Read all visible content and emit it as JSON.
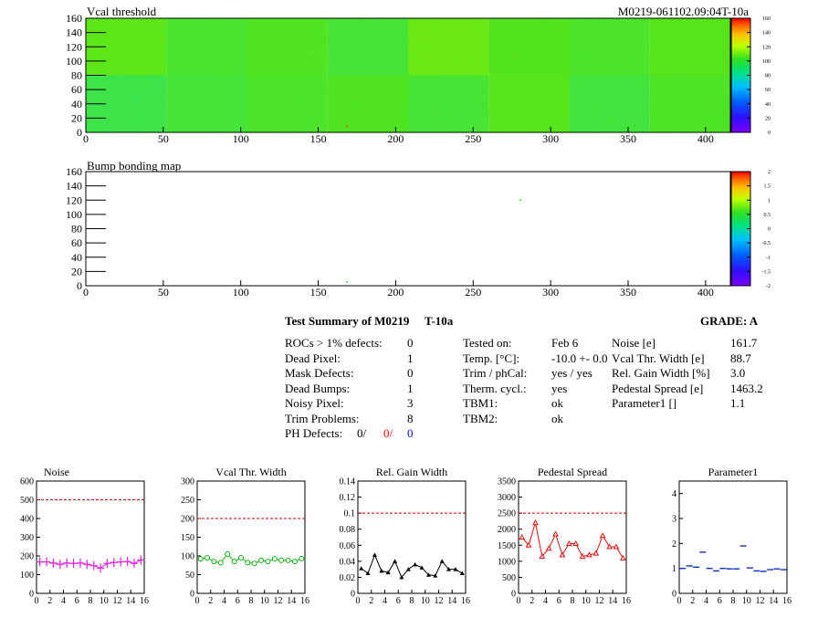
{
  "header": {
    "map1_title": "Vcal threshold",
    "module_id": "M0219-061102.09:04T-10a",
    "map2_title": "Bump bonding map"
  },
  "colors": {
    "map_green": "#2fe02a",
    "pink": "#e020e0",
    "green_series": "#10b010",
    "black_series": "#000000",
    "red_series": "#e01010",
    "blue_series": "#1030c0",
    "limit_line": "#c00000",
    "defects_red": "#ff0000",
    "defects_blue": "#0000ff"
  },
  "summary": {
    "title": "Test Summary of M0219",
    "test": "T-10a",
    "grade": "GRADE:  A",
    "defects": [
      {
        "label": "ROCs > 1% defects:",
        "value": "0"
      },
      {
        "label": "Dead Pixel:",
        "value": "1"
      },
      {
        "label": "Mask Defects:",
        "value": "0"
      },
      {
        "label": "Dead Bumps:",
        "value": "1"
      },
      {
        "label": "Noisy Pixel:",
        "value": "3"
      },
      {
        "label": "Trim Problems:",
        "value": "8"
      }
    ],
    "ph_label": "PH Defects:",
    "ph_values": [
      "0/",
      "0/",
      "0"
    ],
    "conditions": [
      {
        "label": "Tested on:",
        "value": "Feb 6"
      },
      {
        "label": "Temp. [°C]:",
        "value": "-10.0 +- 0.0"
      },
      {
        "label": "Trim / phCal:",
        "value": "yes / yes"
      },
      {
        "label": "Therm. cycl.:",
        "value": "yes"
      },
      {
        "label": "TBM1:",
        "value": "ok"
      },
      {
        "label": "TBM2:",
        "value": "ok"
      }
    ],
    "params": [
      {
        "label": "Noise [e]",
        "value": "161.7"
      },
      {
        "label": "Vcal Thr. Width [e]",
        "value": "88.7"
      },
      {
        "label": "Rel. Gain Width [%]",
        "value": "3.0"
      },
      {
        "label": "Pedestal Spread [e]",
        "value": "1463.2"
      },
      {
        "label": "Parameter1 []",
        "value": "1.1"
      }
    ]
  },
  "chart_data": [
    {
      "type": "heatmap",
      "title": "Vcal threshold",
      "x_ticks": [
        "0",
        "50",
        "100",
        "150",
        "200",
        "250",
        "300",
        "350",
        "400"
      ],
      "y_ticks": [
        "0",
        "20",
        "40",
        "60",
        "80",
        "100",
        "120",
        "140",
        "160"
      ],
      "xlim": [
        0,
        416
      ],
      "ylim": [
        0,
        160
      ],
      "z_ticks": [
        "0",
        "20",
        "40",
        "60",
        "80",
        "100",
        "120",
        "140",
        "160"
      ],
      "zlim": [
        0,
        160
      ],
      "roc_grid": {
        "cols": 8,
        "rows": 2,
        "roc_width": 52,
        "roc_height": 80
      },
      "roc_mean_values": {
        "top": [
          104,
          98,
          101,
          96,
          106,
          102,
          99,
          103
        ],
        "bottom": [
          92,
          96,
          99,
          101,
          97,
          103,
          95,
          100
        ]
      },
      "defect_pixels": [
        {
          "x": 168,
          "y": 9,
          "value": 150
        }
      ]
    },
    {
      "type": "heatmap",
      "title": "Bump bonding map",
      "x_ticks": [
        "0",
        "50",
        "100",
        "150",
        "200",
        "250",
        "300",
        "350",
        "400"
      ],
      "y_ticks": [
        "0",
        "20",
        "40",
        "60",
        "80",
        "100",
        "120",
        "140",
        "160"
      ],
      "xlim": [
        0,
        416
      ],
      "ylim": [
        0,
        160
      ],
      "z_ticks": [
        "-2",
        "-1.5",
        "-1",
        "-0.5",
        "0",
        "0.5",
        "1",
        "1.5",
        "2"
      ],
      "zlim": [
        -2,
        2
      ],
      "marked_pixels": [
        {
          "x": 168,
          "y": 5
        },
        {
          "x": 280,
          "y": 120
        }
      ]
    },
    {
      "type": "line",
      "title": "Noise",
      "style": "crosses",
      "x": [
        0,
        1,
        2,
        3,
        4,
        5,
        6,
        7,
        8,
        9,
        10,
        11,
        12,
        13,
        14,
        15
      ],
      "values": [
        168,
        168,
        162,
        155,
        162,
        160,
        162,
        155,
        148,
        135,
        160,
        165,
        168,
        170,
        160,
        178
      ],
      "xlim": [
        0,
        16
      ],
      "ylim": [
        0,
        600
      ],
      "y_ticks": [
        "0",
        "100",
        "200",
        "300",
        "400",
        "500",
        "600"
      ],
      "x_ticks": [
        "0",
        "2",
        "4",
        "6",
        "8",
        "10",
        "12",
        "14",
        "16"
      ],
      "limit": 500
    },
    {
      "type": "line",
      "title": "Vcal Thr. Width",
      "style": "circles",
      "x": [
        0,
        1,
        2,
        3,
        4,
        5,
        6,
        7,
        8,
        9,
        10,
        11,
        12,
        13,
        14,
        15
      ],
      "values": [
        92,
        95,
        85,
        82,
        105,
        85,
        95,
        82,
        80,
        88,
        85,
        92,
        88,
        88,
        85,
        93
      ],
      "xlim": [
        0,
        16
      ],
      "ylim": [
        0,
        300
      ],
      "y_ticks": [
        "0",
        "50",
        "100",
        "150",
        "200",
        "250",
        "300"
      ],
      "x_ticks": [
        "0",
        "2",
        "4",
        "6",
        "8",
        "10",
        "12",
        "14",
        "16"
      ],
      "limit": 200
    },
    {
      "type": "line",
      "title": "Rel. Gain Width",
      "style": "triangles",
      "x": [
        0,
        1,
        2,
        3,
        4,
        5,
        6,
        7,
        8,
        9,
        10,
        11,
        12,
        13,
        14,
        15
      ],
      "values": [
        0.031,
        0.025,
        0.048,
        0.028,
        0.026,
        0.04,
        0.02,
        0.03,
        0.036,
        0.032,
        0.023,
        0.022,
        0.04,
        0.03,
        0.03,
        0.025
      ],
      "xlim": [
        0,
        16
      ],
      "ylim": [
        0,
        0.14
      ],
      "y_ticks": [
        "0",
        "0.02",
        "0.04",
        "0.06",
        "0.08",
        "0.1",
        "0.12",
        "0.14"
      ],
      "x_ticks": [
        "0",
        "2",
        "4",
        "6",
        "8",
        "10",
        "12",
        "14",
        "16"
      ],
      "limit": 0.1
    },
    {
      "type": "line",
      "title": "Pedestal Spread",
      "style": "open-triangles",
      "x": [
        0,
        1,
        2,
        3,
        4,
        5,
        6,
        7,
        8,
        9,
        10,
        11,
        12,
        13,
        14,
        15
      ],
      "values": [
        1750,
        1500,
        2200,
        1150,
        1400,
        1850,
        1200,
        1550,
        1550,
        1150,
        1200,
        1250,
        1800,
        1450,
        1450,
        1100
      ],
      "xlim": [
        0,
        16
      ],
      "ylim": [
        0,
        3500
      ],
      "y_ticks": [
        "0",
        "500",
        "1000",
        "1500",
        "2000",
        "2500",
        "3000",
        "3500"
      ],
      "x_ticks": [
        "0",
        "2",
        "4",
        "6",
        "8",
        "10",
        "12",
        "14",
        "16"
      ],
      "limit": 2500
    },
    {
      "type": "scatter",
      "title": "Parameter1",
      "style": "horizontal-bars",
      "x": [
        0,
        1,
        2,
        3,
        4,
        5,
        6,
        7,
        8,
        9,
        10,
        11,
        12,
        13,
        14,
        15
      ],
      "values": [
        1.0,
        1.1,
        1.05,
        1.65,
        1.0,
        0.9,
        1.0,
        0.98,
        0.98,
        1.9,
        1.02,
        0.9,
        0.88,
        0.95,
        0.98,
        0.95
      ],
      "xlim": [
        0,
        16
      ],
      "ylim": [
        0,
        4.5
      ],
      "y_ticks": [
        "0",
        "1",
        "2",
        "3",
        "4"
      ],
      "x_ticks": [
        "0",
        "2",
        "4",
        "6",
        "8",
        "10",
        "12",
        "14",
        "16"
      ]
    }
  ]
}
